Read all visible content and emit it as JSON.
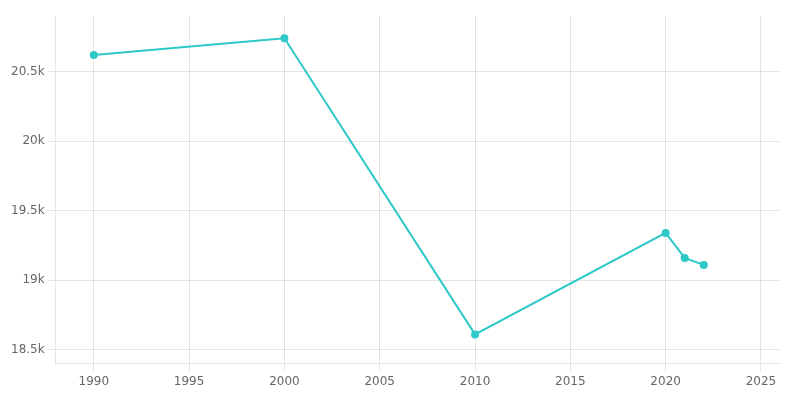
{
  "chart_data": {
    "type": "line",
    "x": [
      1990,
      2000,
      2010,
      2020,
      2021,
      2022
    ],
    "values": [
      20620,
      20740,
      18610,
      19340,
      19160,
      19110
    ],
    "color": "#2ec8c8",
    "marker": "circle",
    "xlim": [
      1988,
      2026
    ],
    "xticks": [
      1990,
      1995,
      2000,
      2005,
      2010,
      2015,
      2020,
      2025
    ],
    "ylim": [
      18400,
      20900
    ],
    "yticks": [
      {
        "value": 18500,
        "label": "18.5k"
      },
      {
        "value": 19000,
        "label": "19k"
      },
      {
        "value": 19500,
        "label": "19.5k"
      },
      {
        "value": 20000,
        "label": "20k"
      },
      {
        "value": 20500,
        "label": "20.5k"
      }
    ],
    "grid": true
  }
}
